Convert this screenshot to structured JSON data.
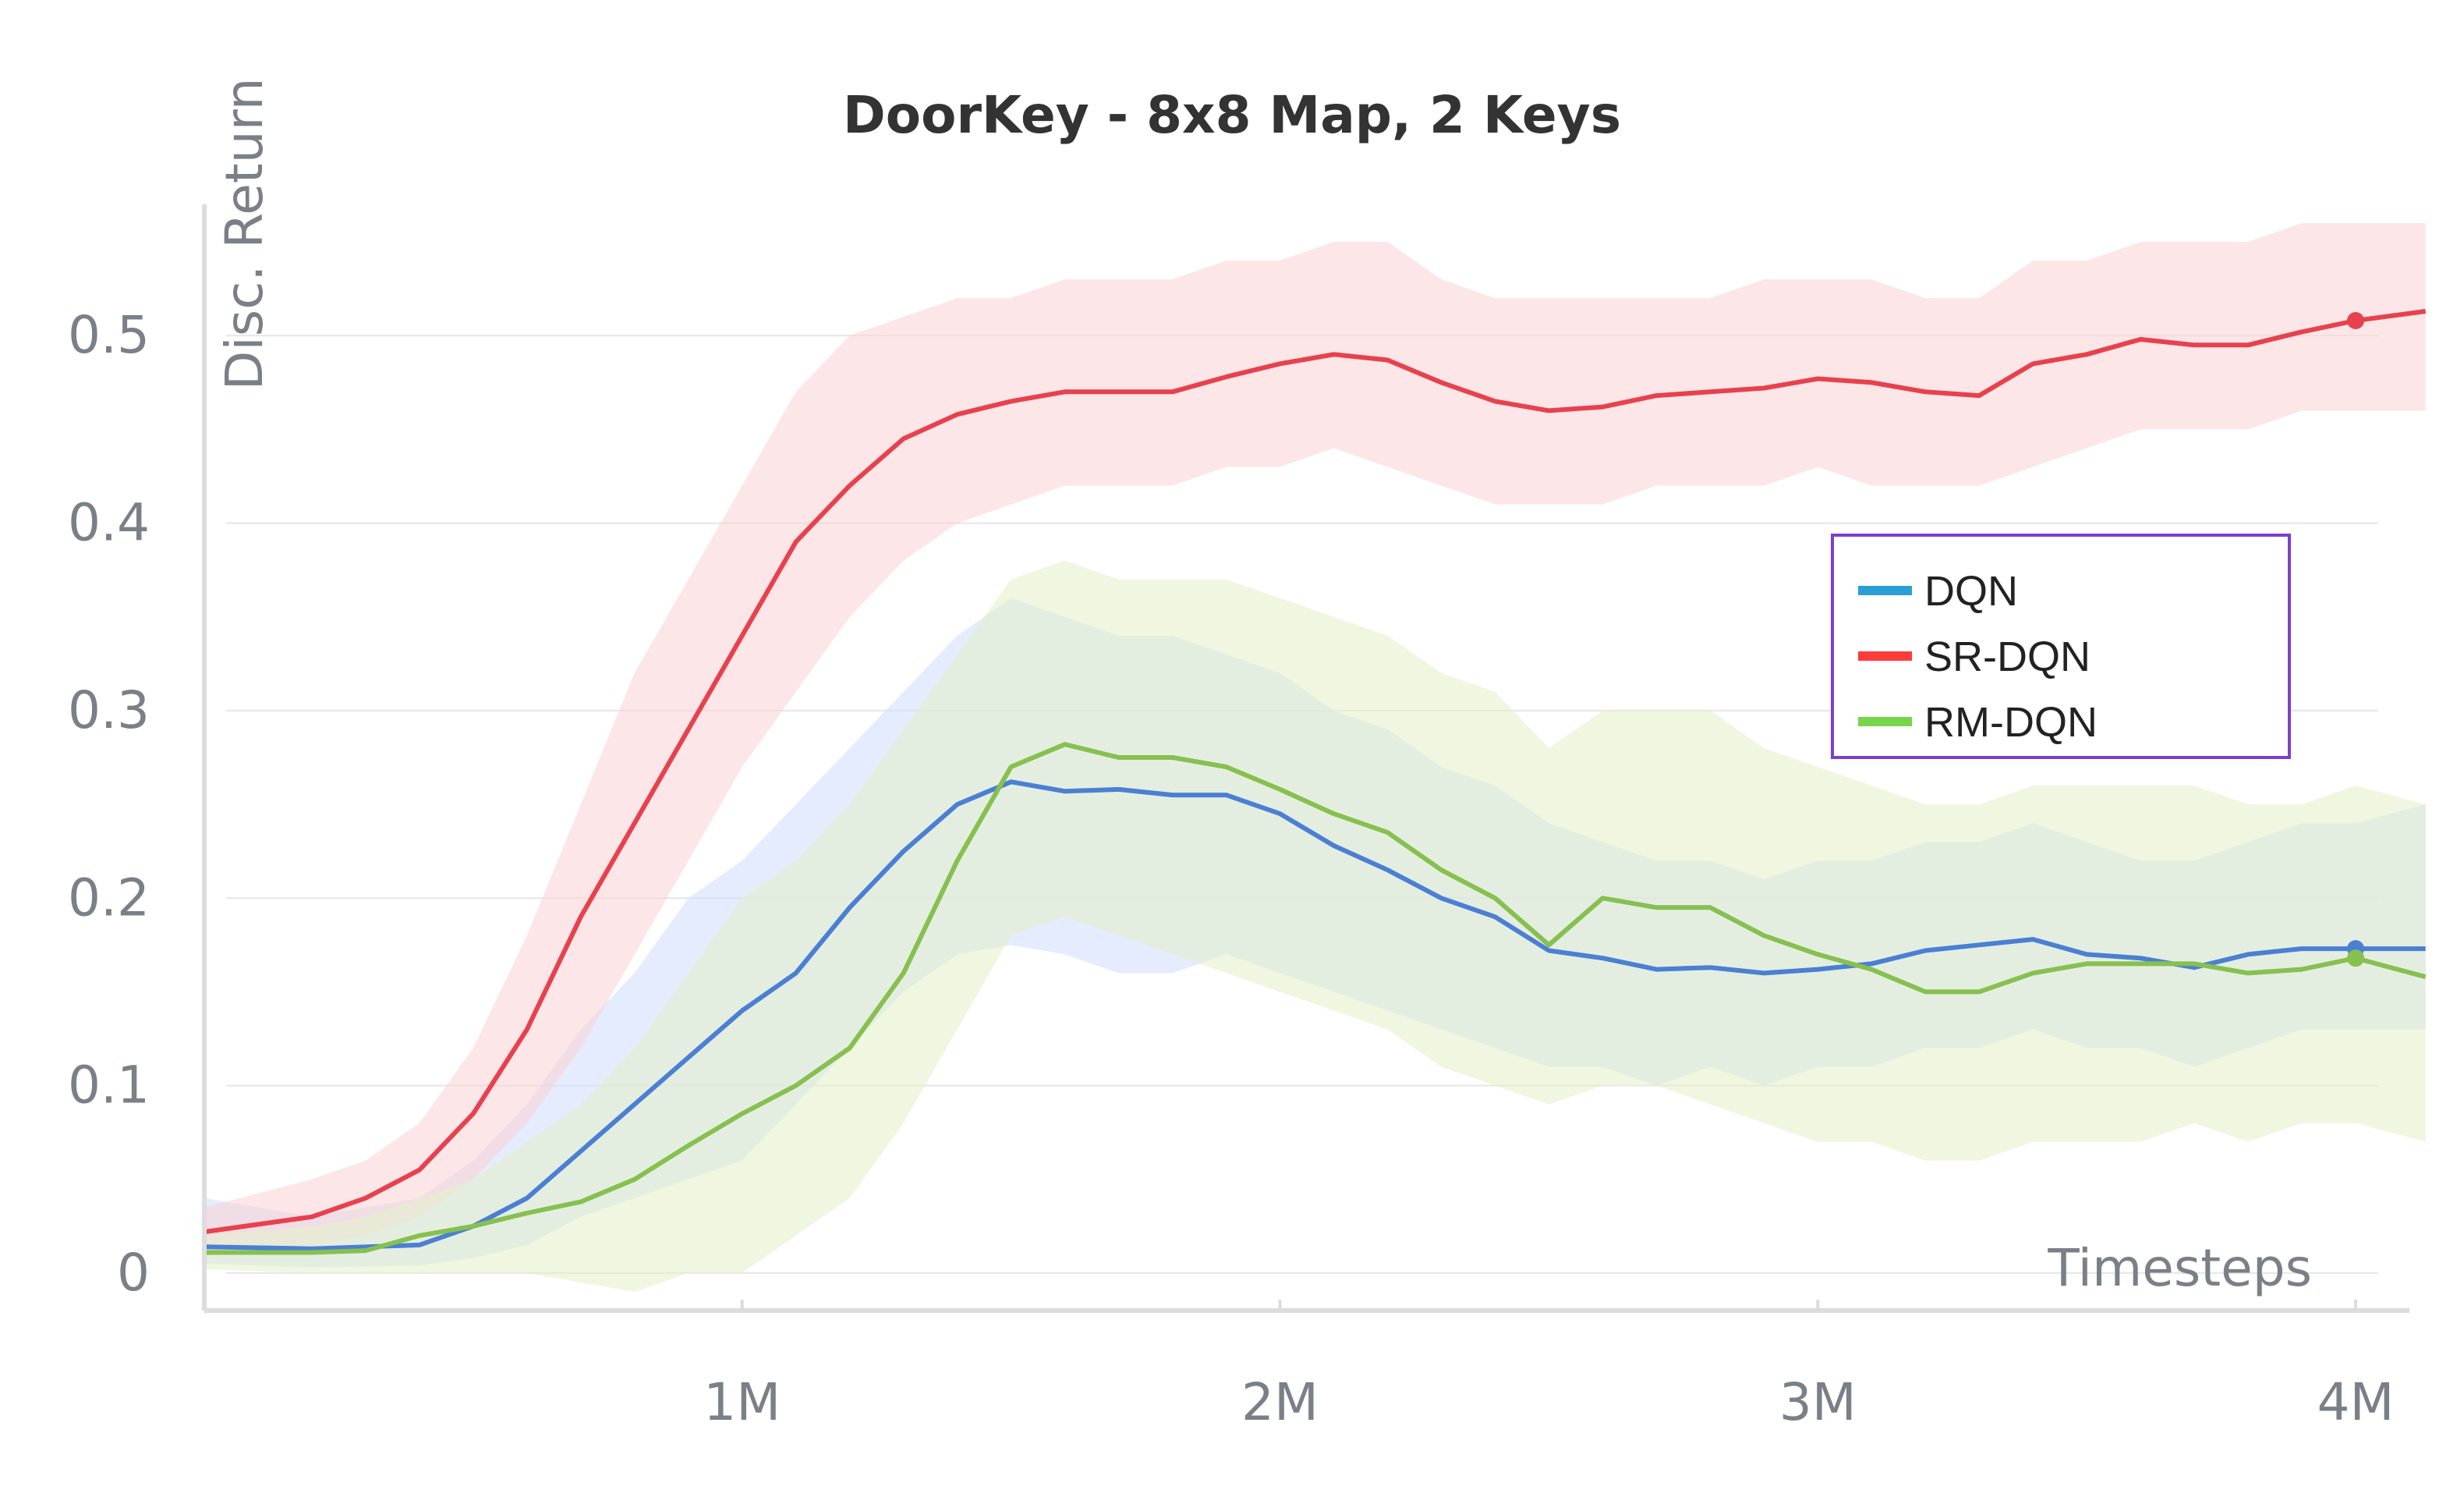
{
  "chart_data": {
    "type": "line",
    "title": "DoorKey - 8x8 Map, 2 Keys",
    "xlabel": "Timesteps",
    "ylabel": "Disc. Return",
    "xlim": [
      0,
      4100000
    ],
    "ylim": [
      -0.02,
      0.57
    ],
    "x_ticks": [
      1000000,
      2000000,
      3000000,
      4000000
    ],
    "x_tick_labels": [
      "1M",
      "2M",
      "3M",
      "4M"
    ],
    "y_ticks": [
      0,
      0.1,
      0.2,
      0.3,
      0.4,
      0.5
    ],
    "y_tick_labels": [
      "0",
      "0.1",
      "0.2",
      "0.3",
      "0.4",
      "0.5"
    ],
    "grid": true,
    "legend_position": "right",
    "series": [
      {
        "name": "DQN",
        "color": "#4a7fd4",
        "legend_color": "#2a9fd6",
        "band_color": "#cfdcfb",
        "x": [
          0,
          200000,
          400000,
          500000,
          600000,
          700000,
          800000,
          900000,
          1000000,
          1100000,
          1200000,
          1300000,
          1400000,
          1500000,
          1600000,
          1700000,
          1800000,
          1900000,
          2000000,
          2100000,
          2200000,
          2300000,
          2400000,
          2500000,
          2600000,
          2700000,
          2800000,
          2900000,
          3000000,
          3100000,
          3200000,
          3300000,
          3400000,
          3500000,
          3600000,
          3700000,
          3800000,
          3900000,
          4000000,
          4130000
        ],
        "values": [
          0.014,
          0.013,
          0.015,
          0.025,
          0.04,
          0.065,
          0.09,
          0.115,
          0.14,
          0.16,
          0.195,
          0.225,
          0.25,
          0.262,
          0.257,
          0.258,
          0.255,
          0.255,
          0.245,
          0.228,
          0.215,
          0.2,
          0.19,
          0.172,
          0.168,
          0.162,
          0.163,
          0.16,
          0.162,
          0.165,
          0.172,
          0.175,
          0.178,
          0.17,
          0.168,
          0.163,
          0.17,
          0.173,
          0.173,
          0.173
        ],
        "band_lower": [
          0.005,
          0.003,
          0.004,
          0.008,
          0.015,
          0.03,
          0.04,
          0.05,
          0.06,
          0.09,
          0.12,
          0.15,
          0.17,
          0.175,
          0.17,
          0.16,
          0.16,
          0.17,
          0.16,
          0.15,
          0.14,
          0.13,
          0.12,
          0.11,
          0.11,
          0.1,
          0.11,
          0.1,
          0.11,
          0.11,
          0.12,
          0.12,
          0.13,
          0.12,
          0.12,
          0.11,
          0.12,
          0.13,
          0.13,
          0.13
        ],
        "band_upper": [
          0.04,
          0.03,
          0.04,
          0.06,
          0.09,
          0.13,
          0.16,
          0.2,
          0.22,
          0.25,
          0.28,
          0.31,
          0.34,
          0.36,
          0.35,
          0.34,
          0.34,
          0.33,
          0.32,
          0.3,
          0.29,
          0.27,
          0.26,
          0.24,
          0.23,
          0.22,
          0.22,
          0.21,
          0.22,
          0.22,
          0.23,
          0.23,
          0.24,
          0.23,
          0.22,
          0.22,
          0.23,
          0.24,
          0.24,
          0.25
        ]
      },
      {
        "name": "SR-DQN",
        "color": "#e8414e",
        "legend_color": "#ff3b3b",
        "band_color": "#fbd1d4",
        "x": [
          0,
          200000,
          300000,
          400000,
          500000,
          600000,
          700000,
          800000,
          900000,
          1000000,
          1100000,
          1200000,
          1300000,
          1400000,
          1500000,
          1600000,
          1700000,
          1800000,
          1900000,
          2000000,
          2100000,
          2200000,
          2300000,
          2400000,
          2500000,
          2600000,
          2700000,
          2800000,
          2900000,
          3000000,
          3100000,
          3200000,
          3300000,
          3400000,
          3500000,
          3600000,
          3700000,
          3800000,
          3900000,
          4000000,
          4130000
        ],
        "values": [
          0.022,
          0.03,
          0.04,
          0.055,
          0.085,
          0.13,
          0.19,
          0.24,
          0.29,
          0.34,
          0.39,
          0.42,
          0.445,
          0.458,
          0.465,
          0.47,
          0.47,
          0.47,
          0.478,
          0.485,
          0.49,
          0.487,
          0.475,
          0.465,
          0.46,
          0.462,
          0.468,
          0.47,
          0.472,
          0.477,
          0.475,
          0.47,
          0.468,
          0.485,
          0.49,
          0.498,
          0.495,
          0.495,
          0.502,
          0.508,
          0.513
        ],
        "band_lower": [
          0.01,
          0.015,
          0.02,
          0.03,
          0.05,
          0.08,
          0.12,
          0.17,
          0.22,
          0.27,
          0.31,
          0.35,
          0.38,
          0.4,
          0.41,
          0.42,
          0.42,
          0.42,
          0.43,
          0.43,
          0.44,
          0.43,
          0.42,
          0.41,
          0.41,
          0.41,
          0.42,
          0.42,
          0.42,
          0.43,
          0.42,
          0.42,
          0.42,
          0.43,
          0.44,
          0.45,
          0.45,
          0.45,
          0.46,
          0.46,
          0.46
        ],
        "band_upper": [
          0.035,
          0.05,
          0.06,
          0.08,
          0.12,
          0.18,
          0.25,
          0.32,
          0.37,
          0.42,
          0.47,
          0.5,
          0.51,
          0.52,
          0.52,
          0.53,
          0.53,
          0.53,
          0.54,
          0.54,
          0.55,
          0.55,
          0.53,
          0.52,
          0.52,
          0.52,
          0.52,
          0.52,
          0.53,
          0.53,
          0.53,
          0.52,
          0.52,
          0.54,
          0.54,
          0.55,
          0.55,
          0.55,
          0.56,
          0.56,
          0.56
        ]
      },
      {
        "name": "RM-DQN",
        "color": "#86c04f",
        "legend_color": "#78d44a",
        "band_color": "#e4f0c8",
        "x": [
          0,
          200000,
          300000,
          400000,
          500000,
          600000,
          700000,
          800000,
          900000,
          1000000,
          1100000,
          1200000,
          1300000,
          1400000,
          1500000,
          1600000,
          1700000,
          1800000,
          1900000,
          2000000,
          2100000,
          2200000,
          2300000,
          2400000,
          2500000,
          2600000,
          2700000,
          2800000,
          2900000,
          3000000,
          3100000,
          3200000,
          3300000,
          3400000,
          3500000,
          3600000,
          3700000,
          3800000,
          3900000,
          4000000,
          4130000
        ],
        "values": [
          0.011,
          0.011,
          0.012,
          0.02,
          0.025,
          0.032,
          0.038,
          0.05,
          0.068,
          0.085,
          0.1,
          0.12,
          0.16,
          0.22,
          0.27,
          0.282,
          0.275,
          0.275,
          0.27,
          0.258,
          0.245,
          0.235,
          0.215,
          0.2,
          0.175,
          0.2,
          0.195,
          0.195,
          0.18,
          0.17,
          0.162,
          0.15,
          0.15,
          0.16,
          0.165,
          0.165,
          0.165,
          0.16,
          0.162,
          0.168,
          0.158
        ],
        "band_lower": [
          0.002,
          0.0,
          0.0,
          0.0,
          0.0,
          0.0,
          -0.005,
          -0.01,
          0.0,
          0.0,
          0.02,
          0.04,
          0.08,
          0.13,
          0.18,
          0.19,
          0.18,
          0.17,
          0.16,
          0.15,
          0.14,
          0.13,
          0.11,
          0.1,
          0.09,
          0.1,
          0.1,
          0.09,
          0.08,
          0.07,
          0.07,
          0.06,
          0.06,
          0.07,
          0.07,
          0.07,
          0.08,
          0.07,
          0.08,
          0.08,
          0.07
        ],
        "band_upper": [
          0.02,
          0.025,
          0.03,
          0.04,
          0.05,
          0.07,
          0.09,
          0.12,
          0.16,
          0.2,
          0.22,
          0.25,
          0.29,
          0.33,
          0.37,
          0.38,
          0.37,
          0.37,
          0.37,
          0.36,
          0.35,
          0.34,
          0.32,
          0.31,
          0.28,
          0.3,
          0.3,
          0.3,
          0.28,
          0.27,
          0.26,
          0.25,
          0.25,
          0.26,
          0.26,
          0.26,
          0.26,
          0.25,
          0.25,
          0.26,
          0.25
        ]
      }
    ],
    "end_markers": [
      {
        "series": "DQN",
        "x": 4000000,
        "y": 0.173
      },
      {
        "series": "SR-DQN",
        "x": 4000000,
        "y": 0.508
      },
      {
        "series": "RM-DQN",
        "x": 4000000,
        "y": 0.168
      }
    ]
  }
}
